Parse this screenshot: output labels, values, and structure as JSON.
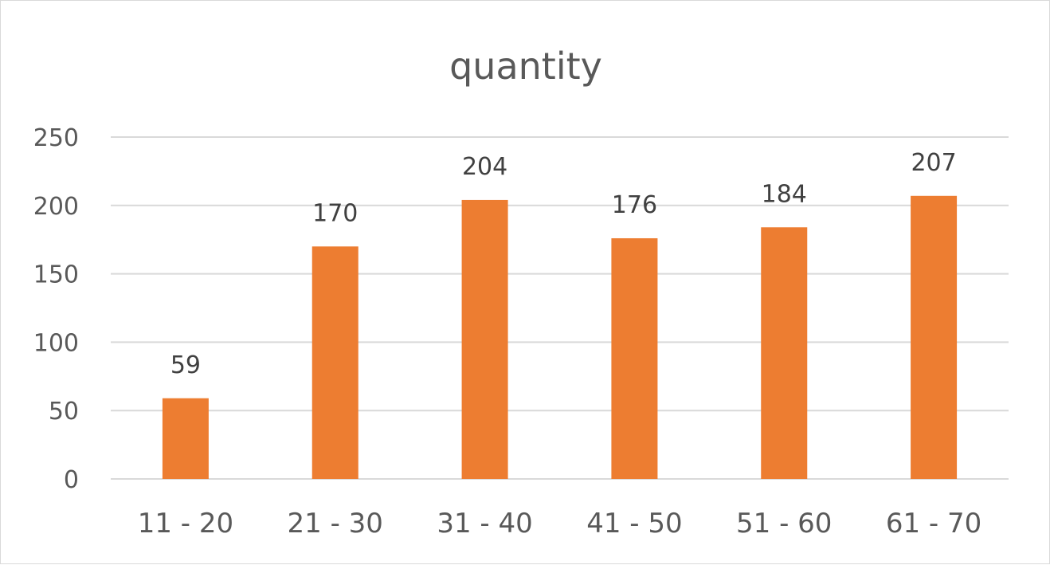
{
  "chart_data": {
    "type": "bar",
    "title": "quantity",
    "xlabel": "",
    "ylabel": "",
    "categories": [
      "11 - 20",
      "21 - 30",
      "31 - 40",
      "41 - 50",
      "51 - 60",
      "61 - 70"
    ],
    "values": [
      59,
      170,
      204,
      176,
      184,
      207
    ],
    "data_labels": [
      "59",
      "170",
      "204",
      "176",
      "184",
      "207"
    ],
    "y_ticks": [
      "0",
      "50",
      "100",
      "150",
      "200",
      "250"
    ],
    "ylim": [
      0,
      250
    ],
    "grid": true,
    "legend": "none",
    "bar_color": "#ED7D31",
    "gridline_color": "#D9D9D9"
  }
}
